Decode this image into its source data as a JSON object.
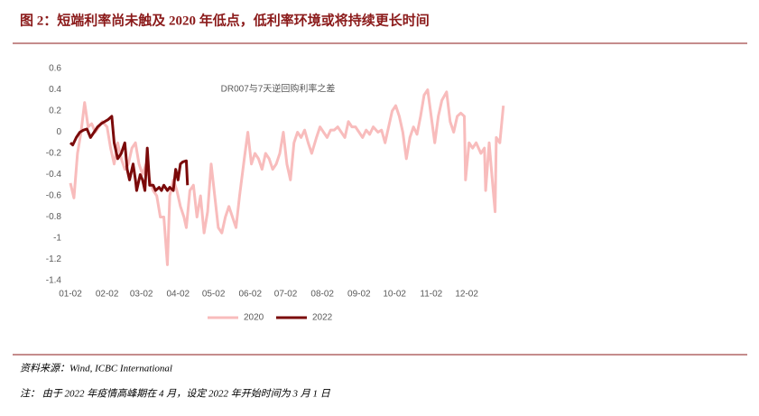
{
  "chart_data": {
    "type": "line",
    "title": "图 2：短端利率尚未触及 2020 年低点，低利率环境或将持续更长时间",
    "subtitle": "DR007与7天逆回购利率之差",
    "xlim": [
      0,
      370
    ],
    "ylim": [
      -1.4,
      0.6
    ],
    "yticks": [
      0.6,
      0.4,
      0.2,
      0,
      -0.2,
      -0.4,
      -0.6,
      -0.8,
      -1,
      -1.2,
      -1.4
    ],
    "xticks": [
      {
        "value": 0,
        "label": "01-02"
      },
      {
        "value": 31,
        "label": "02-02"
      },
      {
        "value": 60,
        "label": "03-02"
      },
      {
        "value": 91,
        "label": "04-02"
      },
      {
        "value": 121,
        "label": "05-02"
      },
      {
        "value": 152,
        "label": "06-02"
      },
      {
        "value": 182,
        "label": "07-02"
      },
      {
        "value": 213,
        "label": "08-02"
      },
      {
        "value": 244,
        "label": "09-02"
      },
      {
        "value": 274,
        "label": "10-02"
      },
      {
        "value": 305,
        "label": "11-02"
      },
      {
        "value": 335,
        "label": "12-02"
      }
    ],
    "legend": "bottom",
    "series": [
      {
        "name": "2020",
        "color": "#f8bcbc",
        "x": [
          0,
          3,
          6,
          9,
          12,
          15,
          18,
          21,
          24,
          27,
          31,
          34,
          37,
          40,
          43,
          46,
          49,
          52,
          55,
          58,
          61,
          64,
          67,
          70,
          73,
          76,
          79,
          82,
          84,
          87,
          90,
          93,
          96,
          98,
          101,
          104,
          107,
          110,
          113,
          116,
          119,
          122,
          125,
          128,
          131,
          134,
          137,
          140,
          143,
          147,
          150,
          153,
          156,
          159,
          162,
          165,
          168,
          171,
          174,
          177,
          180,
          183,
          186,
          189,
          192,
          195,
          198,
          201,
          204,
          208,
          211,
          214,
          217,
          220,
          223,
          226,
          229,
          232,
          235,
          238,
          241,
          244,
          247,
          250,
          253,
          256,
          260,
          263,
          266,
          269,
          272,
          275,
          278,
          281,
          284,
          287,
          290,
          293,
          296,
          299,
          302,
          305,
          308,
          311,
          314,
          318,
          321,
          324,
          327,
          330,
          333,
          334,
          337,
          340,
          343,
          347,
          350,
          351,
          354,
          357,
          359,
          360,
          363,
          366
        ],
        "values": [
          -0.48,
          -0.62,
          -0.2,
          0.0,
          0.28,
          0.05,
          0.08,
          0.0,
          0.05,
          0.1,
          0.05,
          -0.15,
          -0.3,
          -0.1,
          -0.25,
          -0.35,
          -0.3,
          -0.15,
          -0.1,
          -0.3,
          -0.4,
          -0.3,
          -0.45,
          -0.55,
          -0.6,
          -0.8,
          -0.8,
          -1.25,
          -0.6,
          -0.45,
          -0.55,
          -0.7,
          -0.8,
          -0.9,
          -0.55,
          -0.5,
          -0.8,
          -0.6,
          -0.95,
          -0.75,
          -0.3,
          -0.6,
          -0.9,
          -0.95,
          -0.8,
          -0.7,
          -0.8,
          -0.9,
          -0.6,
          -0.25,
          0.0,
          -0.3,
          -0.2,
          -0.25,
          -0.35,
          -0.2,
          -0.25,
          -0.35,
          -0.3,
          -0.2,
          0.0,
          -0.3,
          -0.45,
          -0.1,
          0.0,
          -0.05,
          0.02,
          -0.1,
          -0.2,
          -0.05,
          0.05,
          0.0,
          -0.05,
          0.02,
          0.02,
          0.05,
          0.0,
          -0.05,
          0.1,
          0.05,
          0.05,
          0.0,
          -0.05,
          0.02,
          -0.02,
          0.05,
          0.0,
          0.02,
          -0.1,
          0.05,
          0.2,
          0.25,
          0.15,
          0.0,
          -0.25,
          -0.05,
          0.05,
          -0.02,
          0.15,
          0.35,
          0.4,
          0.15,
          -0.1,
          0.15,
          0.3,
          0.38,
          0.1,
          0.0,
          0.15,
          0.18,
          0.15,
          -0.45,
          -0.1,
          -0.15,
          -0.1,
          -0.2,
          -0.15,
          -0.55,
          -0.1,
          -0.5,
          -0.75,
          -0.05,
          -0.1,
          0.25
        ]
      },
      {
        "name": "2022",
        "color": "#7b0a0a",
        "x": [
          0,
          2,
          5,
          8,
          11,
          14,
          17,
          20,
          23,
          26,
          29,
          32,
          35,
          37,
          40,
          43,
          46,
          48,
          50,
          53,
          55,
          56,
          59,
          61,
          63,
          65,
          67,
          70,
          72,
          75,
          77,
          79,
          82,
          84,
          87,
          89,
          91,
          93,
          95,
          98,
          99
        ],
        "values": [
          -0.1,
          -0.12,
          -0.05,
          0.0,
          0.02,
          0.03,
          -0.05,
          0.0,
          0.05,
          0.08,
          0.1,
          0.12,
          0.15,
          -0.1,
          -0.25,
          -0.2,
          -0.1,
          -0.35,
          -0.45,
          -0.3,
          -0.45,
          -0.55,
          -0.4,
          -0.45,
          -0.55,
          -0.15,
          -0.5,
          -0.5,
          -0.55,
          -0.52,
          -0.55,
          -0.5,
          -0.55,
          -0.52,
          -0.55,
          -0.35,
          -0.45,
          -0.3,
          -0.28,
          -0.27,
          -0.5
        ]
      }
    ]
  },
  "source": "资料来源：Wind, ICBC International",
  "note": "注：  由于 2022 年疫情高峰期在 4 月，设定 2022 年开始时间为 3 月 1 日"
}
